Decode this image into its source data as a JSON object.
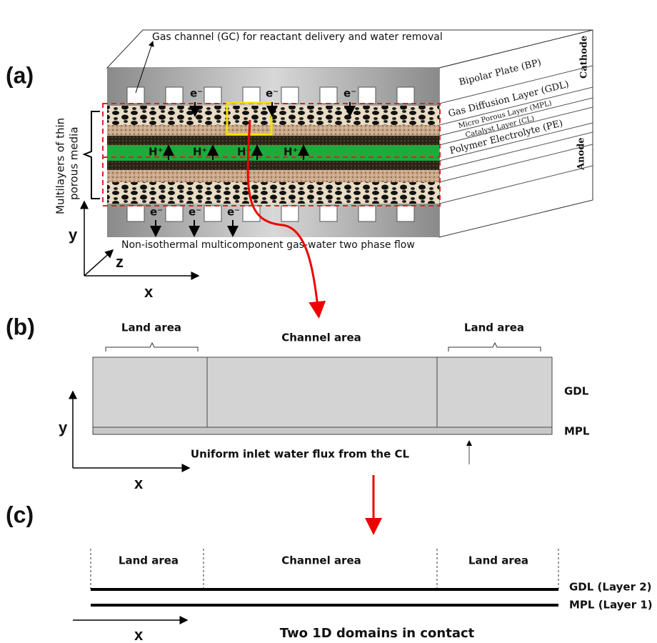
{
  "panel_a": {
    "label": "(a)",
    "gas_channel_note": "Gas channel (GC) for reactant delivery and water removal",
    "electron_labels": [
      "e⁻",
      "e⁻",
      "e⁻",
      "e⁻",
      "e⁻",
      "e⁻"
    ],
    "proton_labels": [
      "H⁺",
      "H⁺",
      "H⁺",
      "H⁺"
    ],
    "layer_labels": [
      "Bipolar Plate (BP)",
      "Gas Diffusion Layer (GDL)",
      "Micro Porous Layer (MPL)",
      "Catalyst Layer (CL)",
      "Polymer Electrolyte (PE)"
    ],
    "electrode_labels": [
      "Cathode",
      "Anode"
    ],
    "porous_media_label": [
      "Multilayers of thin",
      "porous media"
    ],
    "flow_note": "Non-isothermal multicomponent gas-water two phase flow",
    "axes": [
      "y",
      "z",
      "x"
    ]
  },
  "panel_b": {
    "label": "(b)",
    "region_labels": [
      "Land area",
      "Channel area",
      "Land area"
    ],
    "layer_labels": [
      "GDL",
      "MPL"
    ],
    "flux_note": "Uniform inlet water flux from the CL",
    "axes": [
      "y",
      "x"
    ]
  },
  "panel_c": {
    "label": "(c)",
    "region_labels": [
      "Land area",
      "Channel area",
      "Land area"
    ],
    "layer_labels": [
      "GDL (Layer 2)",
      "MPL (Layer 1)"
    ],
    "axis": "x",
    "caption": "Two 1D domains in contact"
  }
}
